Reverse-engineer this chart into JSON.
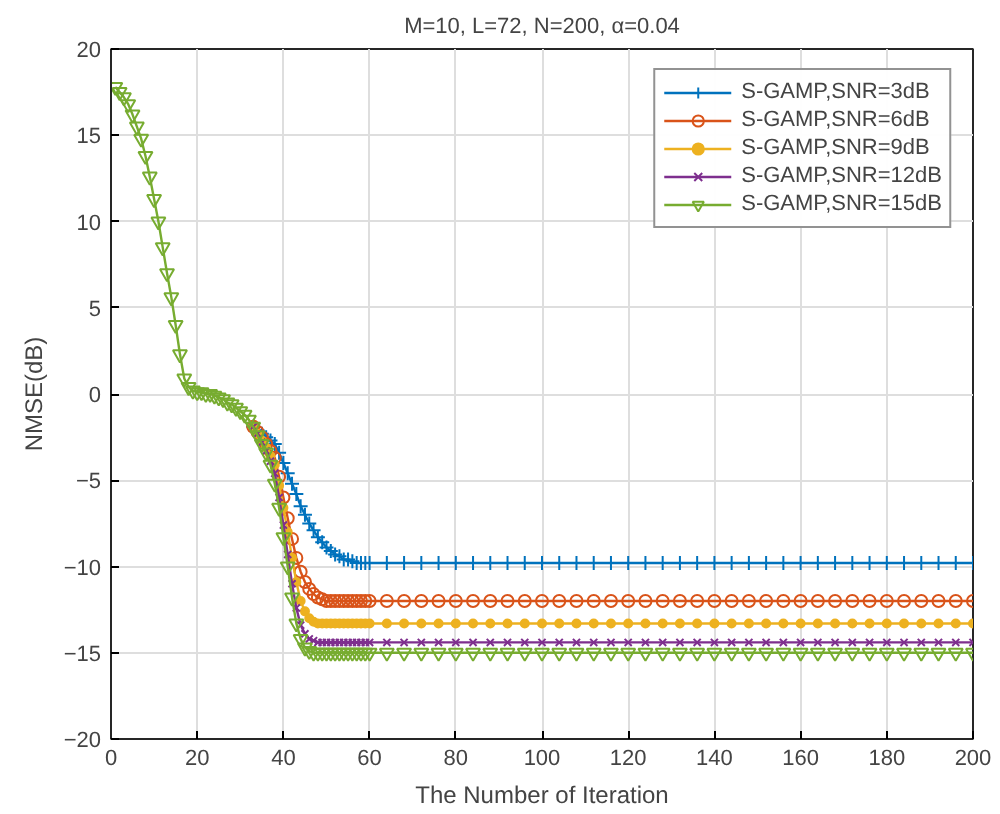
{
  "chart_data": {
    "type": "line",
    "title": "M=10, L=72, N=200, α=0.04",
    "xlabel": "The Number of Iteration",
    "ylabel": "NMSE(dB)",
    "x": [
      1,
      2,
      3,
      4,
      5,
      6,
      7,
      8,
      9,
      10,
      11,
      12,
      13,
      14,
      15,
      16,
      17,
      18,
      19,
      20,
      21,
      22,
      23,
      24,
      25,
      26,
      27,
      28,
      29,
      30,
      31,
      32,
      33,
      34,
      35,
      36,
      37,
      38,
      39,
      40,
      41,
      42,
      43,
      44,
      45,
      46,
      47,
      48,
      49,
      50,
      51,
      52,
      53,
      54,
      55,
      56,
      57,
      58,
      59,
      60,
      64,
      68,
      72,
      76,
      80,
      84,
      88,
      92,
      96,
      100,
      104,
      108,
      112,
      116,
      120,
      124,
      128,
      132,
      136,
      140,
      144,
      148,
      152,
      156,
      160,
      164,
      168,
      172,
      176,
      180,
      184,
      188,
      192,
      196,
      200
    ],
    "series": [
      {
        "name": "S-GAMP,SNR=3dB",
        "color": "#0072bd",
        "marker": "cross",
        "values": [
          null,
          null,
          null,
          null,
          null,
          null,
          null,
          null,
          null,
          null,
          null,
          null,
          null,
          null,
          null,
          null,
          null,
          null,
          null,
          null,
          null,
          null,
          null,
          null,
          null,
          null,
          null,
          null,
          null,
          null,
          null,
          null,
          -1.9,
          -2.1,
          -2.3,
          -2.5,
          -2.7,
          -2.9,
          -3.4,
          -4.0,
          -4.6,
          -5.2,
          -5.8,
          -6.5,
          -7.0,
          -7.5,
          -7.9,
          -8.3,
          -8.6,
          -8.9,
          -9.1,
          -9.3,
          -9.4,
          -9.6,
          -9.6,
          -9.7,
          -9.8,
          -9.8,
          -9.8,
          -9.8,
          -9.8,
          -9.8,
          -9.8,
          -9.8,
          -9.8,
          -9.8,
          -9.8,
          -9.8,
          -9.8,
          -9.8,
          -9.8,
          -9.8,
          -9.8,
          -9.8,
          -9.8,
          -9.8,
          -9.8,
          -9.8,
          -9.8,
          -9.8,
          -9.8,
          -9.8,
          -9.8,
          -9.8,
          -9.8,
          -9.8,
          -9.8,
          -9.8,
          -9.8,
          -9.8,
          -9.8,
          -9.8,
          -9.8,
          -9.8,
          -9.8
        ]
      },
      {
        "name": "S-GAMP,SNR=6dB",
        "color": "#d95319",
        "marker": "circle",
        "values": [
          null,
          null,
          null,
          null,
          null,
          null,
          null,
          null,
          null,
          null,
          null,
          null,
          null,
          null,
          null,
          null,
          null,
          null,
          null,
          null,
          null,
          null,
          null,
          null,
          null,
          null,
          null,
          null,
          null,
          null,
          null,
          null,
          -1.9,
          -2.2,
          -2.5,
          -2.9,
          -3.3,
          -3.7,
          -4.8,
          -6.0,
          -7.2,
          -8.4,
          -9.5,
          -10.3,
          -10.9,
          -11.3,
          -11.6,
          -11.8,
          -11.9,
          -12,
          -12,
          -12,
          -12,
          -12,
          -12,
          -12,
          -12,
          -12,
          -12,
          -12,
          -12,
          -12,
          -12,
          -12,
          -12,
          -12,
          -12,
          -12,
          -12,
          -12,
          -12,
          -12,
          -12,
          -12,
          -12,
          -12,
          -12,
          -12,
          -12,
          -12,
          -12,
          -12,
          -12,
          -12,
          -12,
          -12,
          -12,
          -12,
          -12,
          -12,
          -12,
          -12,
          -12,
          -12,
          -12
        ]
      },
      {
        "name": "S-GAMP,SNR=9dB",
        "color": "#edb120",
        "marker": "dot",
        "values": [
          null,
          null,
          null,
          null,
          null,
          null,
          null,
          null,
          null,
          null,
          null,
          null,
          null,
          null,
          null,
          null,
          null,
          null,
          null,
          null,
          null,
          null,
          null,
          null,
          null,
          null,
          null,
          null,
          null,
          null,
          null,
          null,
          -1.9,
          -2.3,
          -2.7,
          -3.1,
          -3.6,
          -4.1,
          -5.3,
          -6.6,
          -8.0,
          -9.5,
          -10.9,
          -12.0,
          -12.6,
          -13.0,
          -13.2,
          -13.3,
          -13.3,
          -13.3,
          -13.3,
          -13.3,
          -13.3,
          -13.3,
          -13.3,
          -13.3,
          -13.3,
          -13.3,
          -13.3,
          -13.3,
          -13.3,
          -13.3,
          -13.3,
          -13.3,
          -13.3,
          -13.3,
          -13.3,
          -13.3,
          -13.3,
          -13.3,
          -13.3,
          -13.3,
          -13.3,
          -13.3,
          -13.3,
          -13.3,
          -13.3,
          -13.3,
          -13.3,
          -13.3,
          -13.3,
          -13.3,
          -13.3,
          -13.3,
          -13.3,
          -13.3,
          -13.3,
          -13.3,
          -13.3,
          -13.3,
          -13.3,
          -13.3,
          -13.3,
          -13.3,
          -13.3
        ]
      },
      {
        "name": "S-GAMP,SNR=12dB",
        "color": "#7e2f8e",
        "marker": "x",
        "values": [
          null,
          null,
          null,
          null,
          null,
          null,
          null,
          null,
          null,
          null,
          null,
          null,
          null,
          null,
          null,
          null,
          null,
          null,
          null,
          null,
          null,
          null,
          null,
          null,
          null,
          null,
          null,
          null,
          null,
          null,
          null,
          null,
          -1.9,
          -2.3,
          -2.8,
          -3.3,
          -3.9,
          -4.6,
          -6.0,
          -7.6,
          -9.3,
          -11.0,
          -12.4,
          -13.4,
          -13.9,
          -14.2,
          -14.3,
          -14.4,
          -14.4,
          -14.4,
          -14.4,
          -14.4,
          -14.4,
          -14.4,
          -14.4,
          -14.4,
          -14.4,
          -14.4,
          -14.4,
          -14.4,
          -14.4,
          -14.4,
          -14.4,
          -14.4,
          -14.4,
          -14.4,
          -14.4,
          -14.4,
          -14.4,
          -14.4,
          -14.4,
          -14.4,
          -14.4,
          -14.4,
          -14.4,
          -14.4,
          -14.4,
          -14.4,
          -14.4,
          -14.4,
          -14.4,
          -14.4,
          -14.4,
          -14.4,
          -14.4,
          -14.4,
          -14.4,
          -14.4,
          -14.4,
          -14.4,
          -14.4,
          -14.4,
          -14.4,
          -14.4,
          -14.4
        ]
      },
      {
        "name": "S-GAMP,SNR=15dB",
        "color": "#77ac30",
        "marker": "triangle_down",
        "values": [
          17.8,
          17.5,
          17.2,
          16.8,
          16.2,
          15.5,
          14.8,
          13.8,
          12.6,
          11.3,
          10.0,
          8.5,
          7.0,
          5.6,
          4.0,
          2.3,
          0.9,
          0.4,
          0.2,
          0.1,
          0.1,
          0.0,
          0.0,
          -0.1,
          -0.2,
          -0.3,
          -0.5,
          -0.6,
          -0.8,
          -1.0,
          -1.2,
          -1.5,
          -1.9,
          -2.4,
          -2.9,
          -3.4,
          -4.1,
          -5.2,
          -6.6,
          -8.3,
          -10.0,
          -11.8,
          -13.3,
          -14.2,
          -14.7,
          -14.9,
          -15.0,
          -15.0,
          -15.0,
          -15.0,
          -15.0,
          -15.0,
          -15.0,
          -15.0,
          -15.0,
          -15.0,
          -15.0,
          -15.0,
          -15.0,
          -15.0,
          -15.0,
          -15.0,
          -15.0,
          -15.0,
          -15.0,
          -15.0,
          -15.0,
          -15.0,
          -15.0,
          -15.0,
          -15.0,
          -15.0,
          -15.0,
          -15.0,
          -15.0,
          -15.0,
          -15.0,
          -15.0,
          -15.0,
          -15.0,
          -15.0,
          -15.0,
          -15.0,
          -15.0,
          -15.0,
          -15.0,
          -15.0,
          -15.0,
          -15.0,
          -15.0,
          -15.0,
          -15.0,
          -15.0,
          -15.0,
          -15.0
        ]
      }
    ],
    "xlim": [
      0,
      200
    ],
    "ylim": [
      -20,
      20
    ],
    "xticks": [
      0,
      20,
      40,
      60,
      80,
      100,
      120,
      140,
      160,
      180,
      200
    ],
    "yticks": [
      -20,
      -15,
      -10,
      -5,
      0,
      5,
      10,
      15,
      20
    ],
    "grid": true,
    "legend": "top right",
    "line_style": "solid"
  }
}
